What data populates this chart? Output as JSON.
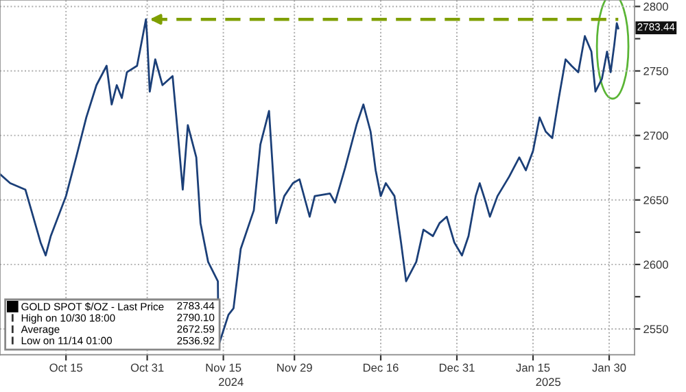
{
  "chart_data": {
    "type": "line",
    "x": [
      "2024-10-02",
      "2024-10-04",
      "2024-10-07",
      "2024-10-10",
      "2024-10-11",
      "2024-10-12",
      "2024-10-15",
      "2024-10-16",
      "2024-10-17",
      "2024-10-19",
      "2024-10-21",
      "2024-10-23",
      "2024-10-24",
      "2024-10-25",
      "2024-10-26",
      "2024-10-27",
      "2024-10-29",
      "2024-10-30T18:00",
      "2024-10-31",
      "2024-10-31T12:00",
      "2024-11-01T14:00",
      "2024-11-03",
      "2024-11-05",
      "2024-11-06",
      "2024-11-07",
      "2024-11-08",
      "2024-11-09T16:00",
      "2024-11-10T12:00",
      "2024-11-12",
      "2024-11-13T22:00",
      "2024-11-14T01:00",
      "2024-11-16",
      "2024-11-17",
      "2024-11-18T10:00",
      "2024-11-21",
      "2024-11-22T07:00",
      "2024-11-24",
      "2024-11-25T10:00",
      "2024-11-27",
      "2024-11-28T17:00",
      "2024-11-30",
      "2024-12-02",
      "2024-12-03",
      "2024-12-06",
      "2024-12-07",
      "2024-12-09",
      "2024-12-11T07:00",
      "2024-12-12T14:00",
      "2024-12-14",
      "2024-12-15",
      "2024-12-16",
      "2024-12-17",
      "2024-12-18T17:00",
      "2024-12-20",
      "2024-12-21",
      "2024-12-23",
      "2024-12-24T10:00",
      "2024-12-26T07:00",
      "2024-12-27T14:00",
      "2024-12-29",
      "2024-12-30T12:00",
      "2025-01-01",
      "2025-01-02T07:00",
      "2025-01-03T17:00",
      "2025-01-04T12:00",
      "2025-01-05T17:00",
      "2025-01-06T12:00",
      "2025-01-08",
      "2025-01-10T07:00",
      "2025-01-12T07:00",
      "2025-01-13T14:00",
      "2025-01-15",
      "2025-01-16T07:00",
      "2025-01-17T12:00",
      "2025-01-18T19:00",
      "2025-01-20T02:00",
      "2025-01-21T10:00",
      "2025-01-22T14:00",
      "2025-01-23T22:00",
      "2025-01-25T05:00",
      "2025-01-26T12:00",
      "2025-01-27T07:00",
      "2025-01-28T14:00",
      "2025-01-29T14:00",
      "2025-01-30T07:00",
      "2025-01-31",
      "2025-01-31T12:00",
      "2025-01-31T19:00"
    ],
    "series": [
      {
        "name": "GOLD SPOT $/OZ - Last Price",
        "color": "#1b3f78",
        "values": [
          2670,
          2663,
          2658,
          2617,
          2607,
          2622,
          2653,
          2668,
          2683,
          2714,
          2739,
          2754,
          2724,
          2739,
          2729,
          2749,
          2754,
          2790,
          2775,
          2734,
          2759,
          2739,
          2746,
          2703,
          2658,
          2708,
          2683,
          2632,
          2602,
          2587,
          2537,
          2561,
          2566,
          2612,
          2642,
          2693,
          2719,
          2632,
          2653,
          2663,
          2666,
          2637,
          2653,
          2655,
          2648,
          2675,
          2709,
          2724,
          2703,
          2673,
          2653,
          2663,
          2653,
          2617,
          2587,
          2602,
          2627,
          2622,
          2632,
          2637,
          2617,
          2607,
          2622,
          2653,
          2663,
          2648,
          2637,
          2653,
          2668,
          2683,
          2673,
          2688,
          2714,
          2703,
          2698,
          2729,
          2759,
          2754,
          2749,
          2777,
          2765,
          2734,
          2744,
          2765,
          2749,
          2770,
          2787,
          2783
        ]
      }
    ],
    "xlim": [
      "2024-10-02",
      "2025-02-04"
    ],
    "xticks": [
      {
        "value": "2024-10-15",
        "label": "Oct 15"
      },
      {
        "value": "2024-10-31",
        "label": "Oct 31"
      },
      {
        "value": "2024-11-15",
        "label": "Nov 15"
      },
      {
        "value": "2024-11-29",
        "label": "Nov 29"
      },
      {
        "value": "2024-12-16",
        "label": "Dec 16"
      },
      {
        "value": "2024-12-31",
        "label": "Dec 31"
      },
      {
        "value": "2025-01-15",
        "label": "Jan 15"
      },
      {
        "value": "2025-01-30",
        "label": "Jan 30"
      }
    ],
    "ylim": [
      2530,
      2805
    ],
    "yticks": [
      2550,
      {
        "value": 2575,
        "label": null
      },
      2600,
      {
        "value": 2625,
        "label": null
      },
      2650,
      {
        "value": 2675,
        "label": null
      },
      2700,
      {
        "value": 2725,
        "label": null
      },
      2750,
      {
        "value": 2775,
        "label": null
      },
      2800
    ],
    "ref_lines": [
      {
        "axis": "y",
        "value": 2790,
        "color": "#7f9f00",
        "line_style": "dashed"
      }
    ],
    "annotations": [
      {
        "text": "2783.44",
        "x": "2025-01-31T19:00",
        "y": 2783.44
      },
      "2024",
      "2025",
      "2783.44",
      "High on 10/30 18:00",
      "2790.10",
      "Average",
      "2672.59",
      "Low on 11/14 01:00",
      "2536.92"
    ],
    "grid": true,
    "legend": "bottom left"
  }
}
